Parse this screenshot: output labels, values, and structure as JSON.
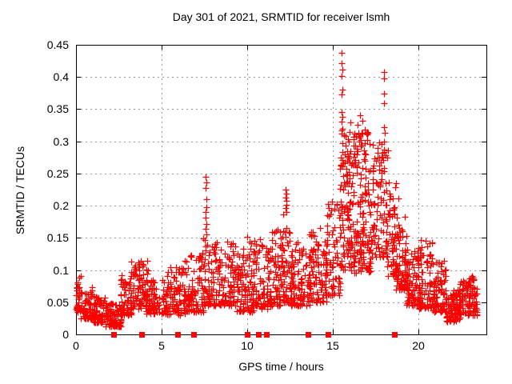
{
  "chart_data": {
    "type": "scatter",
    "title": "Day 301 of 2021, SRMTID for receiver lsmh",
    "xlabel": "GPS time / hours",
    "ylabel": "SRMTID / TECUs",
    "xlim": [
      0,
      24
    ],
    "ylim": [
      0,
      0.45
    ],
    "xticks": {
      "values": [
        0,
        5,
        10,
        15,
        20
      ],
      "labels": [
        "0",
        "5",
        "10",
        "15",
        "20"
      ]
    },
    "yticks": {
      "values": [
        0,
        0.05,
        0.1,
        0.15,
        0.2,
        0.25,
        0.3,
        0.35,
        0.4,
        0.45
      ],
      "labels": [
        "0",
        "0.05",
        "0.1",
        "0.15",
        "0.2",
        "0.25",
        "0.3",
        "0.35",
        "0.4",
        "0.45"
      ]
    },
    "grid": true,
    "legend": "none",
    "marker": "plus",
    "color": "#ff0000",
    "grid_color": "#9a9a9a",
    "seed": 1337,
    "clusters": [
      {
        "t": [
          0.0,
          0.35
        ],
        "v": [
          0.035,
          0.095
        ],
        "n": 40,
        "p": 1.5
      },
      {
        "t": [
          0.25,
          1.1
        ],
        "v": [
          0.025,
          0.075
        ],
        "n": 75,
        "p": 1.7
      },
      {
        "t": [
          1.0,
          1.75
        ],
        "v": [
          0.018,
          0.058
        ],
        "n": 65,
        "p": 1.6
      },
      {
        "t": [
          1.7,
          2.65
        ],
        "v": [
          0.012,
          0.05
        ],
        "n": 95,
        "p": 1.6
      },
      {
        "t": [
          2.6,
          3.25
        ],
        "v": [
          0.03,
          0.095
        ],
        "n": 55,
        "p": 1.7
      },
      {
        "t": [
          3.15,
          4.2
        ],
        "v": [
          0.04,
          0.115
        ],
        "n": 95,
        "p": 1.4
      },
      {
        "t": [
          4.1,
          5.4
        ],
        "v": [
          0.032,
          0.085
        ],
        "n": 95,
        "p": 1.5
      },
      {
        "t": [
          5.3,
          6.4
        ],
        "v": [
          0.03,
          0.105
        ],
        "n": 85,
        "p": 1.5
      },
      {
        "t": [
          6.3,
          7.45
        ],
        "v": [
          0.035,
          0.125
        ],
        "n": 95,
        "p": 1.5
      },
      {
        "t": [
          7.4,
          8.0
        ],
        "v": [
          0.045,
          0.155
        ],
        "n": 50,
        "p": 1.9
      },
      {
        "t": [
          7.9,
          9.5
        ],
        "v": [
          0.045,
          0.145
        ],
        "n": 135,
        "p": 1.5
      },
      {
        "t": [
          9.4,
          10.4
        ],
        "v": [
          0.035,
          0.152
        ],
        "n": 85,
        "p": 1.6
      },
      {
        "t": [
          10.3,
          11.4
        ],
        "v": [
          0.04,
          0.15
        ],
        "n": 95,
        "p": 1.5
      },
      {
        "t": [
          11.3,
          12.2
        ],
        "v": [
          0.045,
          0.165
        ],
        "n": 85,
        "p": 1.5
      },
      {
        "t": [
          12.1,
          12.6
        ],
        "v": [
          0.05,
          0.19
        ],
        "n": 40,
        "p": 2.1
      },
      {
        "t": [
          12.5,
          13.7
        ],
        "v": [
          0.045,
          0.145
        ],
        "n": 100,
        "p": 1.5
      },
      {
        "t": [
          13.6,
          14.7
        ],
        "v": [
          0.05,
          0.165
        ],
        "n": 95,
        "p": 1.5
      },
      {
        "t": [
          14.6,
          15.45
        ],
        "v": [
          0.06,
          0.21
        ],
        "n": 70,
        "p": 1.7
      },
      {
        "t": [
          15.42,
          15.72
        ],
        "v": [
          0.1,
          0.32
        ],
        "n": 45,
        "p": 1.2
      },
      {
        "t": [
          15.65,
          17.35
        ],
        "v": [
          0.12,
          0.315
        ],
        "n": 175,
        "p": 0.9
      },
      {
        "t": [
          15.9,
          17.25
        ],
        "v": [
          0.095,
          0.16
        ],
        "n": 60,
        "p": 1.3
      },
      {
        "t": [
          17.3,
          18.25
        ],
        "v": [
          0.12,
          0.3
        ],
        "n": 95,
        "p": 1.4
      },
      {
        "t": [
          18.2,
          18.85
        ],
        "v": [
          0.09,
          0.24
        ],
        "n": 65,
        "p": 1.6
      },
      {
        "t": [
          18.7,
          19.4
        ],
        "v": [
          0.07,
          0.185
        ],
        "n": 70,
        "p": 1.6
      },
      {
        "t": [
          19.3,
          20.1
        ],
        "v": [
          0.045,
          0.13
        ],
        "n": 75,
        "p": 1.6
      },
      {
        "t": [
          20.0,
          20.9
        ],
        "v": [
          0.04,
          0.148
        ],
        "n": 90,
        "p": 1.5
      },
      {
        "t": [
          20.8,
          21.7
        ],
        "v": [
          0.035,
          0.115
        ],
        "n": 85,
        "p": 1.6
      },
      {
        "t": [
          21.6,
          22.5
        ],
        "v": [
          0.02,
          0.072
        ],
        "n": 90,
        "p": 1.5
      },
      {
        "t": [
          22.4,
          23.45
        ],
        "v": [
          0.03,
          0.092
        ],
        "n": 115,
        "p": 1.4
      }
    ],
    "spikes": [
      {
        "name": "spike-7.6h",
        "points": [
          [
            7.6,
            0.245
          ],
          [
            7.62,
            0.236
          ],
          [
            7.58,
            0.227
          ],
          [
            7.61,
            0.21
          ],
          [
            7.63,
            0.198
          ],
          [
            7.57,
            0.19
          ],
          [
            7.6,
            0.181
          ],
          [
            7.64,
            0.172
          ],
          [
            7.58,
            0.164
          ],
          [
            7.62,
            0.155
          ],
          [
            7.55,
            0.147
          ],
          [
            7.66,
            0.139
          ],
          [
            7.59,
            0.131
          ]
        ]
      },
      {
        "name": "spike-12.3h",
        "points": [
          [
            12.28,
            0.225
          ],
          [
            12.3,
            0.219
          ],
          [
            12.27,
            0.213
          ],
          [
            12.31,
            0.207
          ],
          [
            12.29,
            0.201
          ],
          [
            12.26,
            0.196
          ],
          [
            12.32,
            0.19
          ],
          [
            12.3,
            0.165
          ],
          [
            12.25,
            0.152
          ],
          [
            12.33,
            0.143
          ]
        ]
      },
      {
        "name": "spike-15.5h",
        "points": [
          [
            15.55,
            0.437
          ],
          [
            15.53,
            0.421
          ],
          [
            15.57,
            0.412
          ],
          [
            15.54,
            0.401
          ],
          [
            15.56,
            0.38
          ],
          [
            15.52,
            0.373
          ],
          [
            15.55,
            0.345
          ],
          [
            15.58,
            0.338
          ],
          [
            15.53,
            0.331
          ],
          [
            15.56,
            0.32
          ],
          [
            15.51,
            0.312
          ]
        ]
      },
      {
        "name": "spike-18.0h",
        "points": [
          [
            18.02,
            0.408
          ],
          [
            18.0,
            0.398
          ],
          [
            18.03,
            0.374
          ],
          [
            18.01,
            0.359
          ],
          [
            17.99,
            0.322
          ],
          [
            18.04,
            0.313
          ],
          [
            18.0,
            0.3
          ],
          [
            18.02,
            0.287
          ],
          [
            17.98,
            0.271
          ],
          [
            18.03,
            0.259
          ]
        ]
      },
      {
        "name": "cloud-top-outliers",
        "points": [
          [
            16.6,
            0.34
          ],
          [
            16.75,
            0.332
          ],
          [
            16.45,
            0.326
          ],
          [
            16.9,
            0.318
          ],
          [
            17.0,
            0.312
          ],
          [
            16.05,
            0.33
          ]
        ]
      }
    ],
    "baseline_squares": [
      2.2,
      3.85,
      5.95,
      6.9,
      10.0,
      10.65,
      11.15,
      13.55,
      14.75,
      18.6
    ]
  }
}
